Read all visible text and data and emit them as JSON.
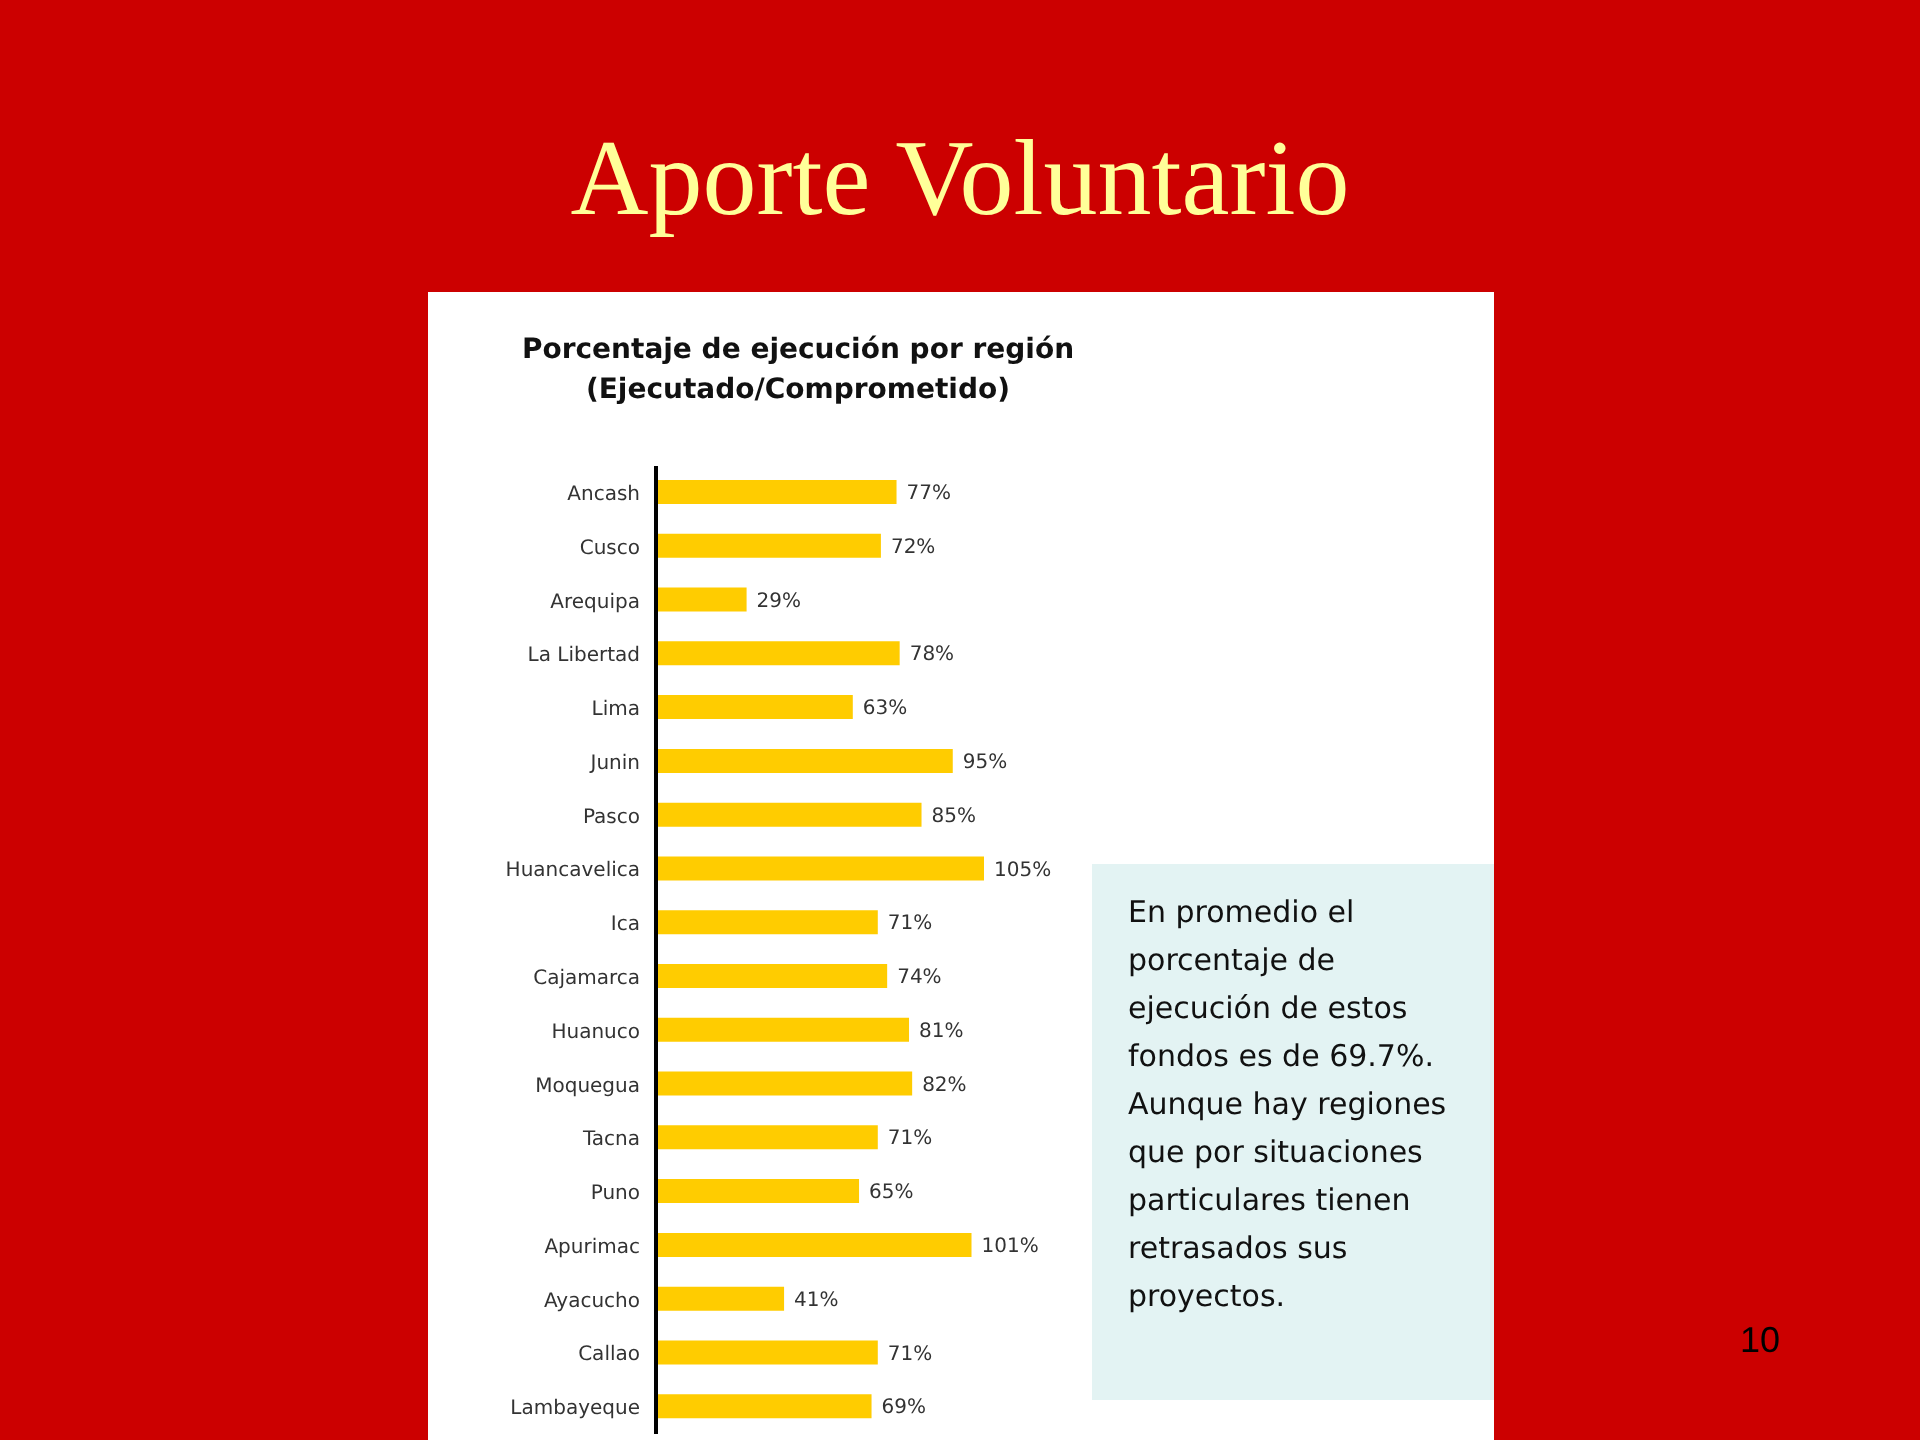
{
  "chart_data": {
    "type": "bar",
    "orientation": "horizontal",
    "title": "Aporte Voluntario",
    "subtitle": "Porcentaje de ejecución por región\n(Ejecutado/Comprometido)",
    "categories": [
      "Ancash",
      "Cusco",
      "Arequipa",
      "La Libertad",
      "Lima",
      "Junin",
      "Pasco",
      "Huancavelica",
      "Ica",
      "Cajamarca",
      "Huanuco",
      "Moquegua",
      "Tacna",
      "Puno",
      "Apurimac",
      "Ayacucho",
      "Callao",
      "Lambayeque"
    ],
    "values": [
      77,
      72,
      29,
      78,
      63,
      95,
      85,
      105,
      71,
      74,
      81,
      82,
      71,
      65,
      101,
      41,
      71,
      69
    ],
    "value_labels": [
      "77%",
      "72%",
      "29%",
      "78%",
      "63%",
      "95%",
      "85%",
      "105%",
      "71%",
      "74%",
      "81%",
      "82%",
      "71%",
      "65%",
      "101%",
      "41%",
      "71%",
      "69%"
    ],
    "color": "#ffcc00",
    "grid": false,
    "legend": false,
    "tick_labels": "y",
    "annotations": [
      "En promedio el porcentaje de ejecución de estos fondos es de 69.7%. Aunque hay regiones que por situaciones particulares tienen retrasados sus proyectos.",
      "10"
    ]
  }
}
